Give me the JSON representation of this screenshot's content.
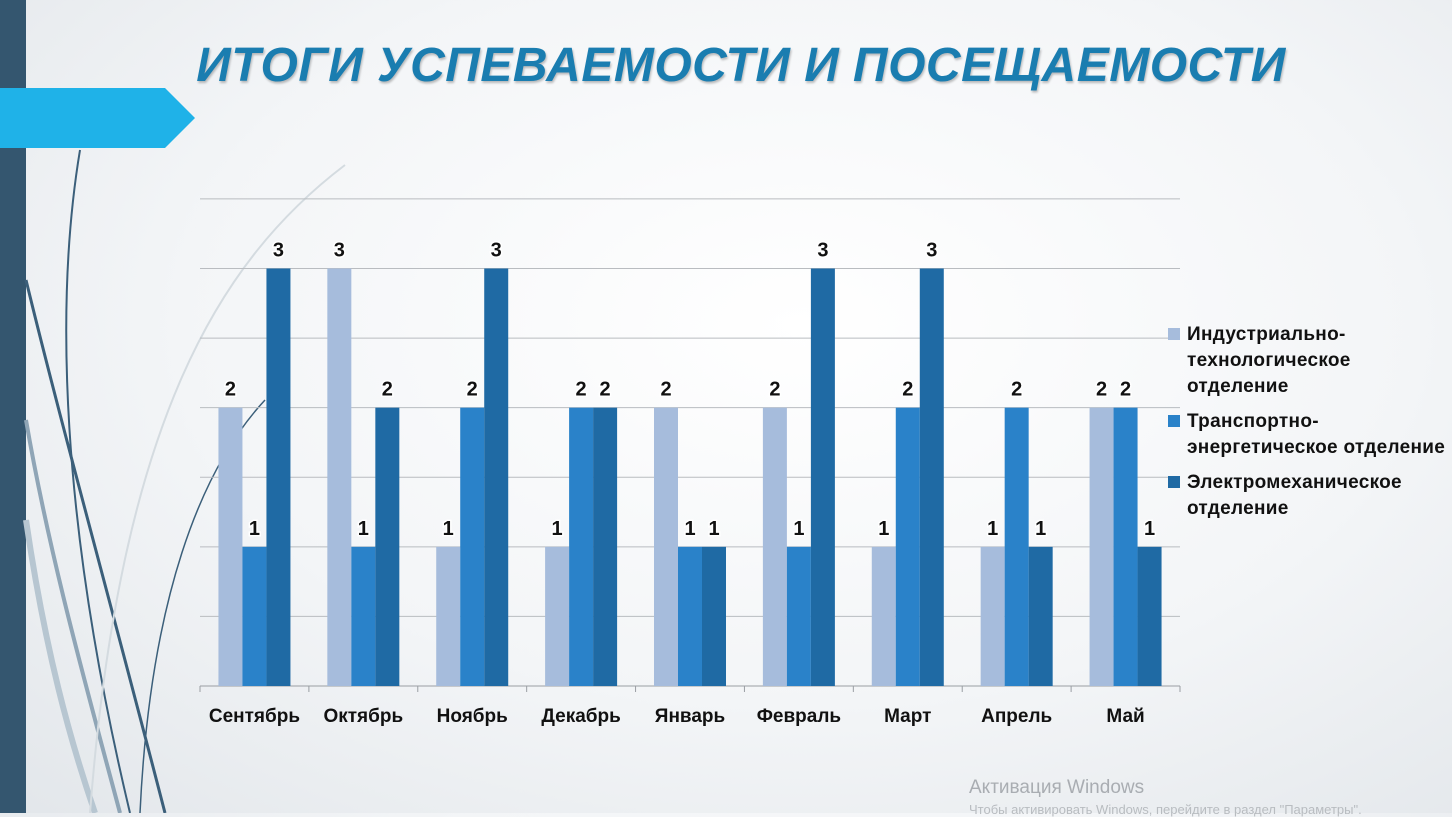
{
  "slide": {
    "title": "ИТОГИ УСПЕВАЕМОСТИ И ПОСЕЩАЕМОСТИ",
    "watermark_title": "Активация Windows",
    "watermark_sub": "Чтобы активировать Windows, перейдите в раздел \"Параметры\"."
  },
  "colors": {
    "series": [
      "#a6bcdc",
      "#2a82c9",
      "#1f6aa4"
    ],
    "grid": "#b9bcc0",
    "band": "#34566f",
    "tab": "#1fb2e8",
    "title": "#1a7db0"
  },
  "chart_data": {
    "type": "bar",
    "title": "ИТОГИ УСПЕВАЕМОСТИ И ПОСЕЩАЕМОСТИ",
    "categories": [
      "Сентябрь",
      "Октябрь",
      "Ноябрь",
      "Декабрь",
      "Январь",
      "Февраль",
      "Март",
      "Апрель",
      "Май"
    ],
    "series": [
      {
        "name": "Индустриально-технологическое отделение",
        "values": [
          2,
          3,
          1,
          1,
          2,
          2,
          1,
          1,
          2
        ]
      },
      {
        "name": "Транспортно-энергетическое отделение",
        "values": [
          1,
          1,
          2,
          2,
          1,
          1,
          2,
          2,
          2
        ]
      },
      {
        "name": "Электромеханическое отделение",
        "values": [
          3,
          2,
          3,
          2,
          1,
          3,
          3,
          1,
          1
        ]
      }
    ],
    "xlabel": "",
    "ylabel": "",
    "ylim": [
      0,
      3.0
    ],
    "grid": true,
    "legend": "right",
    "data_labels": true
  },
  "legend": {
    "items": [
      "Индустриально-технологическое отделение",
      "Транспортно-энергетическое отделение",
      "Электромеханическое отделение"
    ]
  }
}
